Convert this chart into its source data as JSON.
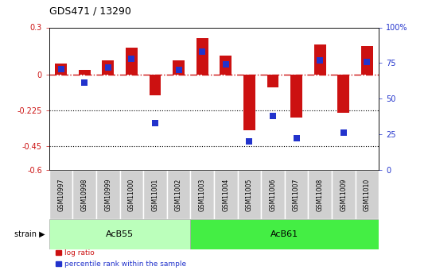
{
  "title": "GDS471 / 13290",
  "samples": [
    "GSM10997",
    "GSM10998",
    "GSM10999",
    "GSM11000",
    "GSM11001",
    "GSM11002",
    "GSM11003",
    "GSM11004",
    "GSM11005",
    "GSM11006",
    "GSM11007",
    "GSM11008",
    "GSM11009",
    "GSM11010"
  ],
  "log_ratio": [
    0.07,
    0.03,
    0.09,
    0.17,
    -0.13,
    0.09,
    0.23,
    0.12,
    -0.35,
    -0.08,
    -0.27,
    0.19,
    -0.24,
    0.18
  ],
  "percentile_rank": [
    71,
    61,
    72,
    78,
    33,
    70,
    83,
    74,
    20,
    38,
    22,
    77,
    26,
    76
  ],
  "ylim_left": [
    -0.6,
    0.3
  ],
  "yticks_left": [
    0.3,
    0.0,
    -0.225,
    -0.45,
    -0.6
  ],
  "ytick_labels_left": [
    "0.3",
    "0",
    "-0.225",
    "-0.45",
    "-0.6"
  ],
  "ylim_right": [
    0,
    100
  ],
  "yticks_right": [
    100,
    75,
    50,
    25,
    0
  ],
  "ytick_labels_right": [
    "100%",
    "75",
    "50",
    "25",
    "0"
  ],
  "hlines_dotted": [
    -0.225,
    -0.45
  ],
  "hline_dash": 0.0,
  "group1_label": "AcB55",
  "group1_samples": 6,
  "group2_label": "AcB61",
  "group2_samples": 8,
  "bar_color_red": "#cc1111",
  "bar_color_blue": "#2233cc",
  "group1_color": "#bbffbb",
  "group2_color": "#44ee44",
  "legend_red": "log ratio",
  "legend_blue": "percentile rank within the sample",
  "bar_width": 0.5,
  "marker_size": 40
}
